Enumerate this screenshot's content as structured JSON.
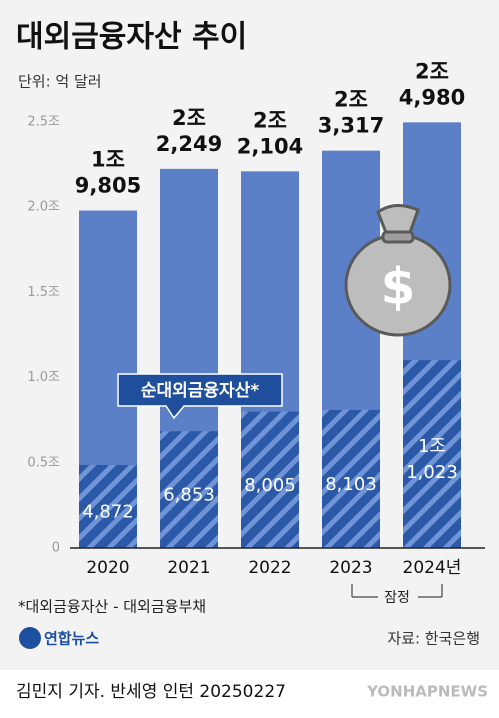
{
  "title": "대외금융자산 추이",
  "unit": "단위: 억 달러",
  "chart_data": {
    "type": "bar",
    "categories": [
      "2020",
      "2021",
      "2022",
      "2023",
      "2024년"
    ],
    "series": [
      {
        "color": "#5b80c8",
        "values": [
          19805,
          22249,
          22104,
          23317,
          24980
        ],
        "value_labels": [
          [
            "1조",
            "9,805"
          ],
          [
            "2조",
            "2,249"
          ],
          [
            "2조",
            "2,104"
          ],
          [
            "2조",
            "3,317"
          ],
          [
            "2조",
            "4,980"
          ]
        ]
      },
      {
        "name": "순대외금융자산*",
        "color": "#2c58a8",
        "values": [
          4872,
          6853,
          8005,
          8103,
          11023
        ],
        "value_labels": [
          [
            "4,872"
          ],
          [
            "6,853"
          ],
          [
            "8,005"
          ],
          [
            "8,103"
          ],
          [
            "1조",
            "1,023"
          ]
        ]
      }
    ],
    "ylim": [
      0,
      25000
    ],
    "yticks": [
      0,
      {
        "value": 5000,
        "label": "0.5조"
      },
      {
        "value": 10000,
        "label": "1.0조"
      },
      {
        "value": 15000,
        "label": "1.5조"
      },
      {
        "value": 20000,
        "label": "2.0조"
      },
      {
        "value": 25000,
        "label": "2.5조"
      }
    ],
    "bracket_label": "잠정"
  },
  "footnote": "*대외금융자산 - 대외금융부채",
  "logo": "연합뉴스",
  "source": "자료: 한국은행",
  "credit": "김민지 기자. 반세영 인턴 20250227",
  "watermark": "YONHAPNEWS"
}
